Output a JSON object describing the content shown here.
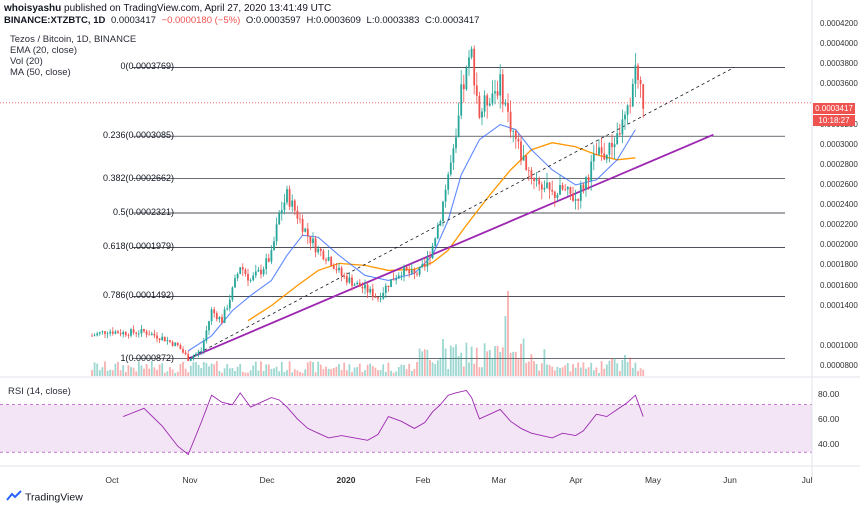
{
  "header": {
    "publisher": "whoisyashu",
    "published_text": "published on TradingView.com, April 27, 2020 13:41:49 UTC",
    "symbol": "BINANCE:XTZBTC, 1D",
    "last": "0.0003417",
    "change": "−0.0000180 (−5%)",
    "open": "O:0.0003597",
    "high": "H:0.0003609",
    "low": "L:0.0003383",
    "close": "C:0.0003417"
  },
  "legend": {
    "title": "Tezos / Bitcoin, 1D, BINANCE",
    "ema": "EMA (20, close)",
    "vol": "Vol (20)",
    "ma": "MA (50, close)"
  },
  "badges": {
    "price": "0.0003417",
    "timer": "10:18:27"
  },
  "rsi": {
    "title": "RSI (14, close)",
    "levels": [
      "80.00",
      "60.00",
      "40.00"
    ]
  },
  "brand": {
    "name": "TradingView"
  },
  "colors": {
    "up": "#26a69a",
    "down": "#ef5350",
    "ema": "#2962ff",
    "ma": "#ff9800",
    "trendline": "#9c27b0",
    "rsi": "#9c27b0"
  },
  "chart_data": {
    "type": "candlestick",
    "x_ticks": [
      "Oct",
      "Nov",
      "Dec",
      "2020",
      "Feb",
      "Mar",
      "Apr",
      "May",
      "Jun",
      "Jul"
    ],
    "y_ticks": [
      "0.0004200",
      "0.0004000",
      "0.0003800",
      "0.0003600",
      "0.0003200",
      "0.0003000",
      "0.0002800",
      "0.0002600",
      "0.0002400",
      "0.0002200",
      "0.0002000",
      "0.0001800",
      "0.0001600",
      "0.0001400",
      "0.0001000",
      "0.0000800"
    ],
    "ylim": [
      7e-05,
      0.00043
    ],
    "fib_levels": [
      {
        "label": "0(0.0003769)",
        "value": 0.0003769
      },
      {
        "label": "0.236(0.0003085)",
        "value": 0.0003085
      },
      {
        "label": "0.382(0.0002662)",
        "value": 0.0002662
      },
      {
        "label": "0.5(0.0002321)",
        "value": 0.0002321
      },
      {
        "label": "0.618(0.0001979)",
        "value": 0.0001979
      },
      {
        "label": "0.786(0.0001492)",
        "value": 0.0001492
      },
      {
        "label": "1(0.0000872)",
        "value": 8.72e-05
      }
    ],
    "close_path": [
      [
        0,
        0.00011
      ],
      [
        6,
        0.000115
      ],
      [
        12,
        0.000113
      ],
      [
        20,
        0.000114
      ],
      [
        27,
        0.000108
      ],
      [
        33,
        0.0001
      ],
      [
        37,
        8.72e-05
      ],
      [
        42,
        9.5e-05
      ],
      [
        46,
        0.000135
      ],
      [
        50,
        0.000125
      ],
      [
        54,
        0.000155
      ],
      [
        57,
        0.00018
      ],
      [
        61,
        0.000165
      ],
      [
        65,
        0.000175
      ],
      [
        69,
        0.00019
      ],
      [
        72,
        0.00023
      ],
      [
        75,
        0.00025
      ],
      [
        79,
        0.00023
      ],
      [
        83,
        0.00021
      ],
      [
        87,
        0.000195
      ],
      [
        91,
        0.000188
      ],
      [
        96,
        0.00017
      ],
      [
        101,
        0.000162
      ],
      [
        106,
        0.000155
      ],
      [
        110,
        0.000148
      ],
      [
        114,
        0.000162
      ],
      [
        119,
        0.000175
      ],
      [
        124,
        0.00017
      ],
      [
        128,
        0.000178
      ],
      [
        131,
        0.0002
      ],
      [
        134,
        0.00023
      ],
      [
        137,
        0.00027
      ],
      [
        140,
        0.0003
      ],
      [
        142,
        0.00035
      ],
      [
        144,
        0.00037
      ],
      [
        146,
        0.00039
      ],
      [
        149,
        0.00033
      ],
      [
        153,
        0.00035
      ],
      [
        157,
        0.00036
      ],
      [
        161,
        0.00032
      ],
      [
        165,
        0.00029
      ],
      [
        169,
        0.00027
      ],
      [
        173,
        0.00026
      ],
      [
        177,
        0.00025
      ],
      [
        181,
        0.000255
      ],
      [
        186,
        0.000246
      ],
      [
        189,
        0.00026
      ],
      [
        194,
        0.00029
      ],
      [
        198,
        0.00029
      ],
      [
        202,
        0.00031
      ],
      [
        206,
        0.00033
      ],
      [
        209,
        0.0003769
      ],
      [
        212,
        0.0003417
      ]
    ],
    "ema_path": [
      [
        37,
        9.5e-05
      ],
      [
        46,
        0.00011
      ],
      [
        54,
        0.000135
      ],
      [
        61,
        0.00015
      ],
      [
        69,
        0.000165
      ],
      [
        75,
        0.00019
      ],
      [
        81,
        0.00021
      ],
      [
        87,
        0.000208
      ],
      [
        95,
        0.00019
      ],
      [
        105,
        0.00017
      ],
      [
        114,
        0.000165
      ],
      [
        124,
        0.000172
      ],
      [
        131,
        0.00019
      ],
      [
        137,
        0.000225
      ],
      [
        142,
        0.00027
      ],
      [
        149,
        0.000305
      ],
      [
        157,
        0.00032
      ],
      [
        163,
        0.000315
      ],
      [
        169,
        0.000295
      ],
      [
        177,
        0.000275
      ],
      [
        186,
        0.00026
      ],
      [
        194,
        0.000265
      ],
      [
        202,
        0.000285
      ],
      [
        209,
        0.000315
      ]
    ],
    "ma_path": [
      [
        60,
        0.000125
      ],
      [
        69,
        0.00014
      ],
      [
        79,
        0.00016
      ],
      [
        87,
        0.000175
      ],
      [
        95,
        0.000182
      ],
      [
        105,
        0.00018
      ],
      [
        114,
        0.000175
      ],
      [
        124,
        0.000176
      ],
      [
        131,
        0.000183
      ],
      [
        137,
        0.000195
      ],
      [
        144,
        0.00022
      ],
      [
        153,
        0.00025
      ],
      [
        161,
        0.000275
      ],
      [
        169,
        0.000295
      ],
      [
        177,
        0.000302
      ],
      [
        186,
        0.000298
      ],
      [
        194,
        0.00029
      ],
      [
        202,
        0.000285
      ],
      [
        209,
        0.000287
      ]
    ],
    "trendline_solid": [
      [
        37,
        8.72e-05
      ],
      [
        239,
        0.00031
      ]
    ],
    "trendline_dashed": [
      [
        37,
        8.72e-05
      ],
      [
        247,
        0.0003769
      ]
    ],
    "rsi_values": [
      [
        12,
        60
      ],
      [
        20,
        67
      ],
      [
        27,
        52
      ],
      [
        33,
        35
      ],
      [
        37,
        28
      ],
      [
        42,
        55
      ],
      [
        46,
        78
      ],
      [
        50,
        72
      ],
      [
        54,
        70
      ],
      [
        57,
        80
      ],
      [
        61,
        68
      ],
      [
        65,
        72
      ],
      [
        69,
        76
      ],
      [
        72,
        74
      ],
      [
        75,
        68
      ],
      [
        79,
        58
      ],
      [
        83,
        50
      ],
      [
        87,
        46
      ],
      [
        91,
        42
      ],
      [
        96,
        44
      ],
      [
        101,
        42
      ],
      [
        106,
        40
      ],
      [
        110,
        45
      ],
      [
        114,
        60
      ],
      [
        119,
        56
      ],
      [
        124,
        50
      ],
      [
        128,
        55
      ],
      [
        131,
        64
      ],
      [
        134,
        70
      ],
      [
        137,
        78
      ],
      [
        140,
        80
      ],
      [
        144,
        82
      ],
      [
        146,
        76
      ],
      [
        149,
        58
      ],
      [
        153,
        62
      ],
      [
        157,
        66
      ],
      [
        161,
        56
      ],
      [
        165,
        50
      ],
      [
        169,
        46
      ],
      [
        173,
        44
      ],
      [
        177,
        42
      ],
      [
        181,
        46
      ],
      [
        186,
        44
      ],
      [
        189,
        48
      ],
      [
        194,
        62
      ],
      [
        198,
        60
      ],
      [
        202,
        66
      ],
      [
        206,
        72
      ],
      [
        209,
        78
      ],
      [
        212,
        60
      ]
    ],
    "rsi_ylim": [
      20,
      90
    ]
  }
}
